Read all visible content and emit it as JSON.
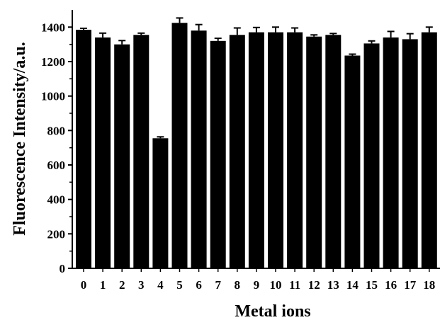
{
  "chart_data": {
    "type": "bar",
    "xlabel": "Metal ions",
    "ylabel": "Fluorescence Intensity/a.u.",
    "categories": [
      "0",
      "1",
      "2",
      "3",
      "4",
      "5",
      "6",
      "7",
      "8",
      "9",
      "10",
      "11",
      "12",
      "13",
      "14",
      "15",
      "16",
      "17",
      "18"
    ],
    "values": [
      1385,
      1340,
      1300,
      1355,
      755,
      1425,
      1380,
      1320,
      1355,
      1370,
      1370,
      1370,
      1345,
      1355,
      1235,
      1305,
      1340,
      1330,
      1370
    ],
    "errors": [
      8,
      25,
      22,
      10,
      8,
      28,
      35,
      15,
      40,
      28,
      30,
      25,
      10,
      8,
      8,
      15,
      35,
      32,
      30
    ],
    "ylim": [
      0,
      1500
    ],
    "yticks": [
      0,
      200,
      400,
      600,
      800,
      1000,
      1200,
      1400
    ],
    "bar_color": "#000000",
    "grid": false
  }
}
